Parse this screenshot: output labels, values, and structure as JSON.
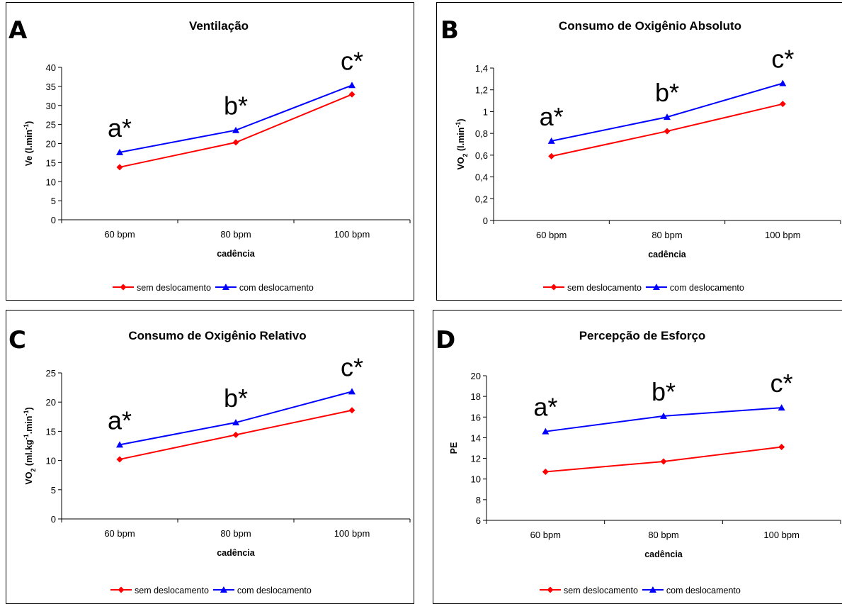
{
  "chart_data": [
    {
      "type": "line",
      "panel_letter": "A",
      "title": "Ventilação",
      "xlabel": "cadência",
      "ylabel": "Ve (l.min -1)",
      "categories": [
        "60 bpm",
        "80 bpm",
        "100 bpm"
      ],
      "ylim": [
        0,
        40
      ],
      "yticks": [
        "0",
        "5",
        "10",
        "15",
        "20",
        "25",
        "30",
        "35",
        "40"
      ],
      "series": [
        {
          "name": "sem deslocamento",
          "color": "#ff0000",
          "marker": "diamond",
          "values": [
            13.8,
            20.3,
            32.9
          ]
        },
        {
          "name": "com deslocamento",
          "color": "#0000ff",
          "marker": "triangle",
          "values": [
            17.7,
            23.5,
            35.3
          ]
        }
      ],
      "annotations": [
        "a*",
        "b*",
        "c*"
      ],
      "legend_position": "bottom",
      "grid": false
    },
    {
      "type": "line",
      "panel_letter": "B",
      "title": "Consumo de Oxigênio Absoluto",
      "xlabel": "cadência",
      "ylabel": "VO2 (l.min -1)",
      "categories": [
        "60 bpm",
        "80 bpm",
        "100 bpm"
      ],
      "ylim": [
        0,
        1.4
      ],
      "yticks": [
        "0",
        "0,2",
        "0,4",
        "0,6",
        "0,8",
        "1",
        "1,2",
        "1,4"
      ],
      "series": [
        {
          "name": "sem deslocamento",
          "color": "#ff0000",
          "marker": "diamond",
          "values": [
            0.59,
            0.82,
            1.07
          ]
        },
        {
          "name": "com deslocamento",
          "color": "#0000ff",
          "marker": "triangle",
          "values": [
            0.73,
            0.95,
            1.26
          ]
        }
      ],
      "annotations": [
        "a*",
        "b*",
        "c*"
      ],
      "legend_position": "bottom",
      "grid": false
    },
    {
      "type": "line",
      "panel_letter": "C",
      "title": "Consumo de Oxigênio Relativo",
      "xlabel": "cadência",
      "ylabel": "VO2 (ml.kg -1.min -1)",
      "categories": [
        "60 bpm",
        "80 bpm",
        "100 bpm"
      ],
      "ylim": [
        0,
        25
      ],
      "yticks": [
        "0",
        "5",
        "10",
        "15",
        "20",
        "25"
      ],
      "series": [
        {
          "name": "sem deslocamento",
          "color": "#ff0000",
          "marker": "diamond",
          "values": [
            10.2,
            14.4,
            18.6
          ]
        },
        {
          "name": "com deslocamento",
          "color": "#0000ff",
          "marker": "triangle",
          "values": [
            12.7,
            16.5,
            21.8
          ]
        }
      ],
      "annotations": [
        "a*",
        "b*",
        "c*"
      ],
      "legend_position": "bottom",
      "grid": false
    },
    {
      "type": "line",
      "panel_letter": "D",
      "title": "Percepção de Esforço",
      "xlabel": "cadência",
      "ylabel": "PE",
      "categories": [
        "60 bpm",
        "80 bpm",
        "100 bpm"
      ],
      "ylim": [
        6,
        20
      ],
      "yticks": [
        "6",
        "8",
        "10",
        "12",
        "14",
        "16",
        "18",
        "20"
      ],
      "series": [
        {
          "name": "sem deslocamento",
          "color": "#ff0000",
          "marker": "diamond",
          "values": [
            10.7,
            11.7,
            13.1
          ]
        },
        {
          "name": "com deslocamento",
          "color": "#0000ff",
          "marker": "triangle",
          "values": [
            14.6,
            16.1,
            16.9
          ]
        }
      ],
      "annotations": [
        "a*",
        "b*",
        "c*"
      ],
      "legend_position": "bottom",
      "grid": false
    }
  ]
}
